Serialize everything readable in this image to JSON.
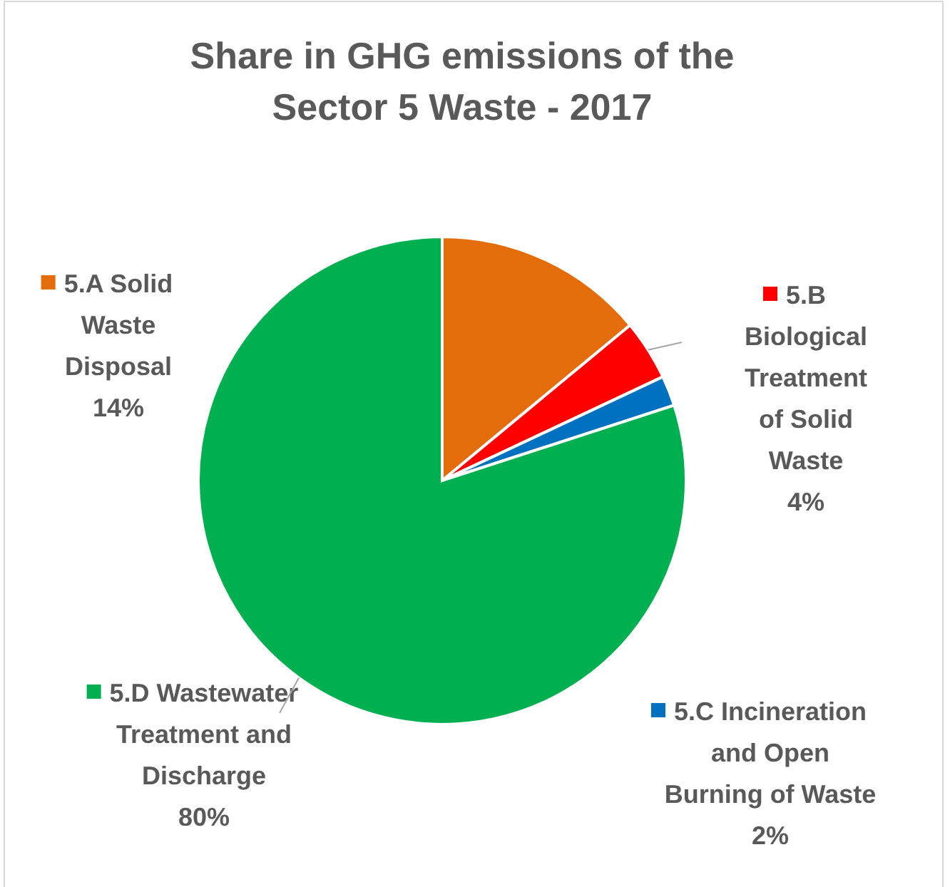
{
  "chart_data": {
    "type": "pie",
    "title": "Share in GHG emissions of the Sector 5 Waste - 2017",
    "categories": [
      "5.A Solid Waste Disposal",
      "5.B Biological Treatment of Solid Waste",
      "5.C Incineration and Open Burning of Waste",
      "5.D Wastewater Treatment and Discharge"
    ],
    "values": [
      14,
      4,
      2,
      80
    ],
    "colors": [
      "#e46c0a",
      "#ff0000",
      "#0070c0",
      "#00b050"
    ],
    "value_labels": [
      "14%",
      "4%",
      "2%",
      "80%"
    ],
    "legend": "left"
  }
}
